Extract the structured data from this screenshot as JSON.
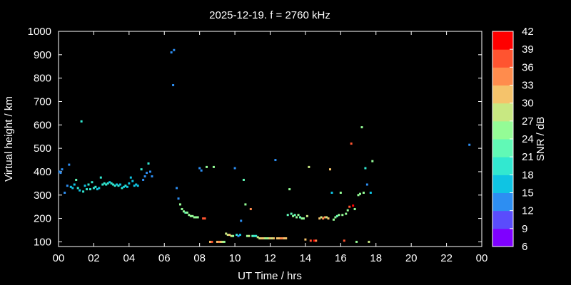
{
  "chart_data": {
    "type": "scatter",
    "title": "2025-12-19. f = 2760 kHz",
    "xlabel": "UT Time / hrs",
    "ylabel": "Virtual height / km",
    "xlim": [
      0,
      24
    ],
    "ylim": [
      80,
      1000
    ],
    "xticks": [
      "00",
      "02",
      "04",
      "06",
      "08",
      "10",
      "12",
      "14",
      "16",
      "18",
      "20",
      "22",
      "00"
    ],
    "yticks": [
      100,
      200,
      300,
      400,
      500,
      600,
      700,
      800,
      900,
      1000
    ],
    "grid": false,
    "colorbar": {
      "label": "SNR / dB",
      "ticks": [
        6,
        9,
        12,
        15,
        18,
        21,
        24,
        27,
        30,
        33,
        36,
        39,
        42
      ],
      "colors": [
        "#7f00ff",
        "#5a4cfc",
        "#2d8ef2",
        "#0fc4e3",
        "#32e8d0",
        "#61f9b6",
        "#94fc96",
        "#c8e882",
        "#f5c36b",
        "#ff8c4d",
        "#ff5430",
        "#ff0000"
      ]
    },
    "points": [
      [
        0.05,
        400,
        12
      ],
      [
        0.12,
        395,
        12
      ],
      [
        0.2,
        410,
        12
      ],
      [
        0.35,
        310,
        14
      ],
      [
        0.5,
        340,
        14
      ],
      [
        0.6,
        430,
        12
      ],
      [
        0.7,
        335,
        15
      ],
      [
        0.8,
        330,
        16
      ],
      [
        0.9,
        345,
        16
      ],
      [
        1.0,
        365,
        22
      ],
      [
        1.1,
        330,
        18
      ],
      [
        1.2,
        320,
        16
      ],
      [
        1.3,
        615,
        20
      ],
      [
        1.4,
        315,
        18
      ],
      [
        1.5,
        340,
        17
      ],
      [
        1.6,
        325,
        18
      ],
      [
        1.7,
        345,
        20
      ],
      [
        1.8,
        325,
        18
      ],
      [
        1.9,
        355,
        20
      ],
      [
        2.0,
        330,
        18
      ],
      [
        2.1,
        335,
        18
      ],
      [
        2.2,
        325,
        17
      ],
      [
        2.3,
        330,
        17
      ],
      [
        2.4,
        375,
        20
      ],
      [
        2.5,
        345,
        18
      ],
      [
        2.6,
        350,
        18
      ],
      [
        2.7,
        345,
        18
      ],
      [
        2.8,
        350,
        18
      ],
      [
        2.9,
        355,
        16
      ],
      [
        3.0,
        350,
        19
      ],
      [
        3.1,
        345,
        19
      ],
      [
        3.2,
        340,
        19
      ],
      [
        3.3,
        345,
        17
      ],
      [
        3.4,
        340,
        18
      ],
      [
        3.5,
        345,
        16
      ],
      [
        3.6,
        330,
        18
      ],
      [
        3.7,
        335,
        17
      ],
      [
        3.8,
        340,
        18
      ],
      [
        3.9,
        335,
        17
      ],
      [
        4.0,
        350,
        15
      ],
      [
        4.1,
        375,
        17
      ],
      [
        4.2,
        360,
        16
      ],
      [
        4.3,
        340,
        17
      ],
      [
        4.4,
        345,
        16
      ],
      [
        4.5,
        340,
        16
      ],
      [
        4.7,
        410,
        20
      ],
      [
        4.8,
        365,
        14
      ],
      [
        4.9,
        380,
        14
      ],
      [
        5.0,
        395,
        13
      ],
      [
        5.1,
        435,
        20
      ],
      [
        5.2,
        400,
        12
      ],
      [
        5.3,
        380,
        12
      ],
      [
        6.4,
        910,
        12
      ],
      [
        6.55,
        920,
        12
      ],
      [
        6.5,
        770,
        12
      ],
      [
        6.7,
        330,
        12
      ],
      [
        6.8,
        285,
        12
      ],
      [
        6.9,
        260,
        24
      ],
      [
        7.0,
        240,
        24
      ],
      [
        7.1,
        230,
        24
      ],
      [
        7.2,
        225,
        22
      ],
      [
        7.3,
        225,
        24
      ],
      [
        7.4,
        215,
        26
      ],
      [
        7.5,
        210,
        26
      ],
      [
        7.6,
        210,
        26
      ],
      [
        7.7,
        205,
        26
      ],
      [
        7.8,
        205,
        25
      ],
      [
        7.9,
        205,
        24
      ],
      [
        8.0,
        415,
        12
      ],
      [
        8.1,
        405,
        12
      ],
      [
        8.2,
        200,
        36
      ],
      [
        8.3,
        200,
        36
      ],
      [
        8.4,
        420,
        24
      ],
      [
        8.6,
        100,
        30
      ],
      [
        8.7,
        100,
        36
      ],
      [
        8.8,
        420,
        26
      ],
      [
        9.0,
        100,
        30
      ],
      [
        9.1,
        100,
        33
      ],
      [
        9.2,
        100,
        30
      ],
      [
        9.3,
        100,
        28
      ],
      [
        9.4,
        100,
        24
      ],
      [
        9.5,
        135,
        28
      ],
      [
        9.6,
        130,
        28
      ],
      [
        9.7,
        130,
        30
      ],
      [
        9.8,
        125,
        28
      ],
      [
        9.9,
        125,
        24
      ],
      [
        10.0,
        415,
        12
      ],
      [
        10.1,
        130,
        18
      ],
      [
        10.2,
        125,
        12
      ],
      [
        10.3,
        130,
        16
      ],
      [
        10.35,
        190,
        12
      ],
      [
        10.5,
        365,
        22
      ],
      [
        10.6,
        260,
        24
      ],
      [
        10.7,
        125,
        24
      ],
      [
        10.8,
        125,
        27
      ],
      [
        10.9,
        240,
        33
      ],
      [
        11.0,
        125,
        22
      ],
      [
        11.1,
        125,
        20
      ],
      [
        11.2,
        125,
        18
      ],
      [
        11.3,
        120,
        27
      ],
      [
        11.4,
        115,
        28
      ],
      [
        11.5,
        115,
        30
      ],
      [
        11.6,
        115,
        30
      ],
      [
        11.7,
        115,
        28
      ],
      [
        11.8,
        115,
        26
      ],
      [
        11.9,
        115,
        28
      ],
      [
        12.0,
        115,
        30
      ],
      [
        12.1,
        115,
        28
      ],
      [
        12.2,
        115,
        30
      ],
      [
        12.3,
        450,
        14
      ],
      [
        12.4,
        115,
        30
      ],
      [
        12.5,
        115,
        30
      ],
      [
        12.6,
        115,
        33
      ],
      [
        12.7,
        115,
        33
      ],
      [
        12.8,
        115,
        30
      ],
      [
        12.9,
        115,
        30
      ],
      [
        13.0,
        215,
        22
      ],
      [
        13.1,
        325,
        24
      ],
      [
        13.2,
        220,
        22
      ],
      [
        13.3,
        210,
        24
      ],
      [
        13.4,
        215,
        22
      ],
      [
        13.5,
        205,
        24
      ],
      [
        13.6,
        215,
        24
      ],
      [
        13.7,
        205,
        22
      ],
      [
        13.8,
        200,
        26
      ],
      [
        13.9,
        200,
        24
      ],
      [
        14.0,
        110,
        30
      ],
      [
        14.1,
        210,
        28
      ],
      [
        14.2,
        420,
        27
      ],
      [
        14.3,
        105,
        36
      ],
      [
        14.5,
        105,
        39
      ],
      [
        14.6,
        105,
        33
      ],
      [
        14.8,
        200,
        30
      ],
      [
        14.9,
        205,
        28
      ],
      [
        15.0,
        200,
        33
      ],
      [
        15.1,
        205,
        33
      ],
      [
        15.2,
        205,
        28
      ],
      [
        15.3,
        200,
        30
      ],
      [
        15.4,
        410,
        30
      ],
      [
        15.5,
        310,
        15
      ],
      [
        15.6,
        195,
        24
      ],
      [
        15.7,
        205,
        26
      ],
      [
        15.8,
        210,
        22
      ],
      [
        15.9,
        215,
        26
      ],
      [
        16.0,
        310,
        26
      ],
      [
        16.1,
        215,
        24
      ],
      [
        16.2,
        105,
        36
      ],
      [
        16.3,
        220,
        24
      ],
      [
        16.4,
        235,
        24
      ],
      [
        16.5,
        250,
        36
      ],
      [
        16.6,
        520,
        36
      ],
      [
        16.7,
        255,
        39
      ],
      [
        16.8,
        240,
        26
      ],
      [
        16.9,
        100,
        26
      ],
      [
        17.0,
        300,
        26
      ],
      [
        17.1,
        305,
        24
      ],
      [
        17.2,
        590,
        24
      ],
      [
        17.3,
        310,
        24
      ],
      [
        17.4,
        415,
        18
      ],
      [
        17.5,
        345,
        14
      ],
      [
        17.6,
        100,
        27
      ],
      [
        17.7,
        310,
        16
      ],
      [
        17.8,
        445,
        24
      ],
      [
        23.3,
        515,
        12
      ]
    ]
  }
}
